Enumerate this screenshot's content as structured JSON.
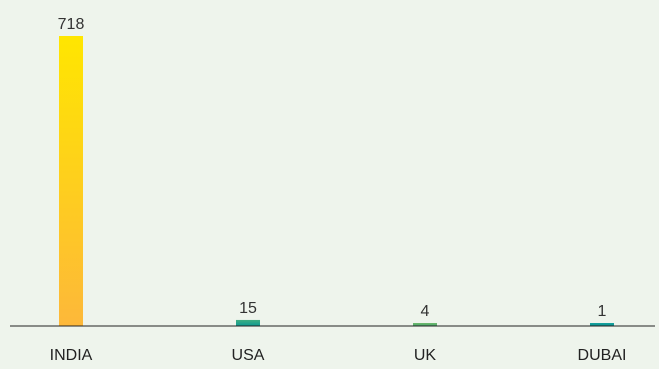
{
  "chart_data": {
    "type": "bar",
    "categories": [
      "INDIA",
      "USA",
      "UK",
      "DUBAI"
    ],
    "values": [
      718,
      15,
      4,
      1
    ],
    "title": "",
    "xlabel": "",
    "ylabel": "",
    "ylim": [
      0,
      718
    ],
    "grid": false,
    "legend": "none",
    "bar_colors": [
      {
        "top": "#ffe600",
        "bottom": "#fdb83a"
      },
      {
        "top": "#3fae82",
        "bottom": "#0e9a93"
      },
      {
        "top": "#6cb96a",
        "bottom": "#4aa46f"
      },
      {
        "top": "#14a3a0",
        "bottom": "#0e8f8c"
      }
    ],
    "background_color": "#eef4ec",
    "axis_color": "#222222",
    "label_color": "#333333"
  }
}
